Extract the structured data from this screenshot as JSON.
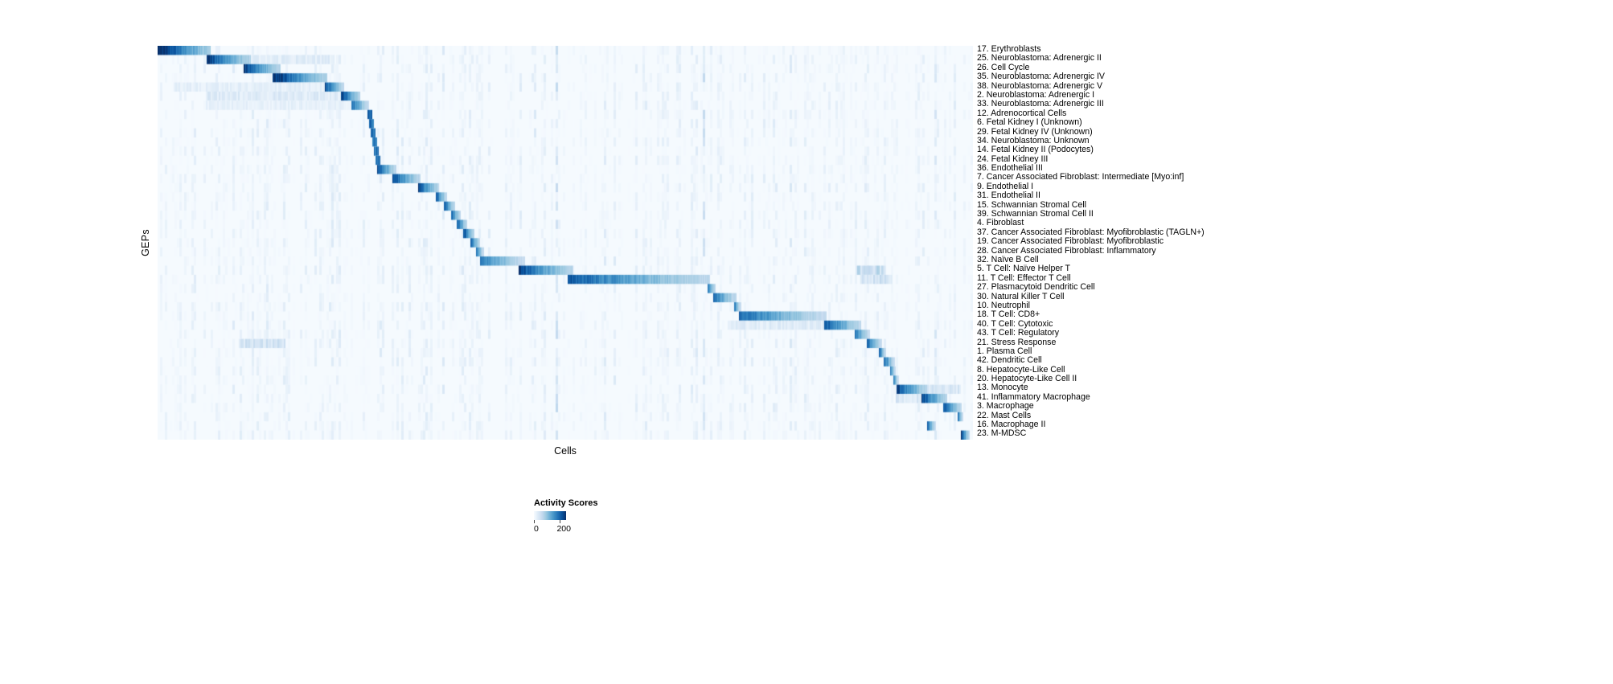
{
  "figure": {
    "background": "#ffffff"
  },
  "chart_data": {
    "type": "heatmap",
    "title": "",
    "xlabel": "Cells",
    "ylabel": "GEPs",
    "value_range": [
      0,
      200
    ],
    "colormap": "Blues",
    "colormap_stops": [
      "#f7fbff",
      "#deebf7",
      "#c6dbef",
      "#9ecae1",
      "#6baed6",
      "#4292c6",
      "#2171b5",
      "#08519c",
      "#08306b"
    ],
    "legend": {
      "title": "Activity Scores",
      "min": "0",
      "max": "200"
    },
    "x_axis_ticks": "none (individual cells, unlabeled)",
    "rows": [
      {
        "label": "17. Erythroblasts",
        "start": 0.0,
        "end": 0.065,
        "peak": 220
      },
      {
        "label": "25. Neuroblastoma: Adrenergic II",
        "start": 0.061,
        "end": 0.114,
        "peak": 195,
        "secondary": [
          0.115,
          0.215,
          28
        ]
      },
      {
        "label": "26. Cell Cycle",
        "start": 0.106,
        "end": 0.15,
        "peak": 190
      },
      {
        "label": "35. Neuroblastoma: Adrenergic IV",
        "start": 0.142,
        "end": 0.208,
        "peak": 205
      },
      {
        "label": "38. Neuroblastoma: Adrenergic V",
        "start": 0.206,
        "end": 0.228,
        "peak": 175,
        "secondary": [
          0.02,
          0.205,
          22
        ]
      },
      {
        "label": "2. Neuroblastoma: Adrenergic I",
        "start": 0.225,
        "end": 0.248,
        "peak": 195,
        "secondary": [
          0.06,
          0.222,
          30
        ]
      },
      {
        "label": "33. Neuroblastoma: Adrenergic III",
        "start": 0.238,
        "end": 0.259,
        "peak": 155,
        "secondary": [
          0.06,
          0.235,
          20
        ]
      },
      {
        "label": "12. Adrenocortical Cells",
        "start": 0.258,
        "end": 0.263,
        "peak": 165
      },
      {
        "label": "6. Fetal Kidney I (Unknown)",
        "start": 0.26,
        "end": 0.265,
        "peak": 155
      },
      {
        "label": "29. Fetal Kidney IV (Unknown)",
        "start": 0.262,
        "end": 0.267,
        "peak": 150
      },
      {
        "label": "34. Neuroblastoma: Unknown",
        "start": 0.264,
        "end": 0.269,
        "peak": 145
      },
      {
        "label": "14. Fetal Kidney II (Podocytes)",
        "start": 0.266,
        "end": 0.271,
        "peak": 150
      },
      {
        "label": "24. Fetal Kidney III",
        "start": 0.268,
        "end": 0.273,
        "peak": 150
      },
      {
        "label": "36. Endothelial III",
        "start": 0.27,
        "end": 0.292,
        "peak": 175
      },
      {
        "label": "7. Cancer Associated Fibroblast: Intermediate [Myo:inf]",
        "start": 0.288,
        "end": 0.322,
        "peak": 185
      },
      {
        "label": "9. Endothelial I",
        "start": 0.32,
        "end": 0.345,
        "peak": 185
      },
      {
        "label": "31. Endothelial II",
        "start": 0.342,
        "end": 0.355,
        "peak": 170
      },
      {
        "label": "15. Schwannian Stromal Cell",
        "start": 0.352,
        "end": 0.364,
        "peak": 170
      },
      {
        "label": "39. Schwannian Stromal Cell II",
        "start": 0.36,
        "end": 0.371,
        "peak": 160
      },
      {
        "label": "4. Fibroblast",
        "start": 0.367,
        "end": 0.379,
        "peak": 175
      },
      {
        "label": "37. Cancer Associated Fibroblast: Myofibroblastic (TAGLN+)",
        "start": 0.375,
        "end": 0.388,
        "peak": 185
      },
      {
        "label": "19. Cancer Associated Fibroblast: Myofibroblastic",
        "start": 0.384,
        "end": 0.395,
        "peak": 170
      },
      {
        "label": "28. Cancer Associated Fibroblast: Inflammatory",
        "start": 0.391,
        "end": 0.4,
        "peak": 155
      },
      {
        "label": "32. Naïve B Cell",
        "start": 0.396,
        "end": 0.45,
        "peak": 150
      },
      {
        "label": "5. T Cell: Naïve Helper T",
        "start": 0.443,
        "end": 0.509,
        "peak": 185,
        "secondary": [
          0.857,
          0.892,
          55
        ]
      },
      {
        "label": "11. T Cell: Effector T Cell",
        "start": 0.503,
        "end": 0.677,
        "peak": 170,
        "secondary": [
          0.862,
          0.9,
          45
        ]
      },
      {
        "label": "27. Plasmacytoid Dendritic Cell",
        "start": 0.675,
        "end": 0.684,
        "peak": 160
      },
      {
        "label": "30. Natural Killer T Cell",
        "start": 0.682,
        "end": 0.71,
        "peak": 160
      },
      {
        "label": "10. Neutrophil",
        "start": 0.708,
        "end": 0.715,
        "peak": 140
      },
      {
        "label": "18. T Cell: CD8+",
        "start": 0.714,
        "end": 0.82,
        "peak": 160
      },
      {
        "label": "40. T Cell: Cytotoxic",
        "start": 0.818,
        "end": 0.862,
        "peak": 175,
        "secondary": [
          0.7,
          0.816,
          28
        ]
      },
      {
        "label": "43. T Cell: Regulatory",
        "start": 0.856,
        "end": 0.873,
        "peak": 150
      },
      {
        "label": "21. Stress Response",
        "start": 0.87,
        "end": 0.888,
        "peak": 160,
        "secondary": [
          0.1,
          0.155,
          45
        ]
      },
      {
        "label": "1. Plasma Cell",
        "start": 0.885,
        "end": 0.893,
        "peak": 150
      },
      {
        "label": "42. Dendritic Cell",
        "start": 0.891,
        "end": 0.904,
        "peak": 160
      },
      {
        "label": "8. Hepatocyte-Like Cell",
        "start": 0.899,
        "end": 0.905,
        "peak": 140
      },
      {
        "label": "20. Hepatocyte-Like Cell II",
        "start": 0.903,
        "end": 0.909,
        "peak": 140
      },
      {
        "label": "13. Monocyte",
        "start": 0.907,
        "end": 0.943,
        "peak": 185,
        "secondary": [
          0.944,
          0.985,
          38
        ]
      },
      {
        "label": "41. Inflammatory Macrophage",
        "start": 0.937,
        "end": 0.968,
        "peak": 185,
        "secondary": [
          0.906,
          0.936,
          38
        ]
      },
      {
        "label": "3. Macrophage",
        "start": 0.964,
        "end": 0.986,
        "peak": 175
      },
      {
        "label": "22. Mast Cells",
        "start": 0.982,
        "end": 0.988,
        "peak": 150
      },
      {
        "label": "16. Macrophage II",
        "start": 0.944,
        "end": 0.954,
        "peak": 150
      },
      {
        "label": "23. M-MDSC",
        "start": 0.986,
        "end": 0.996,
        "peak": 185
      }
    ]
  }
}
